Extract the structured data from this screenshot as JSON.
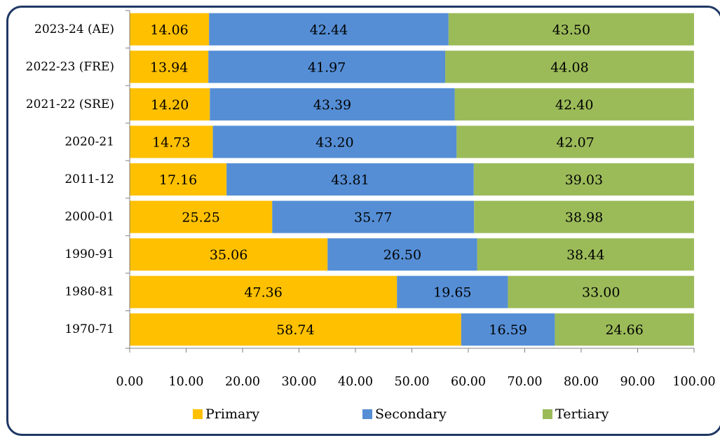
{
  "chart_data": {
    "type": "bar",
    "orientation": "horizontal",
    "stacked": true,
    "categories": [
      "2023-24 (AE)",
      "2022-23 (FRE)",
      "2021-22 (SRE)",
      "2020-21",
      "2011-12",
      "2000-01",
      "1990-91",
      "1980-81",
      "1970-71"
    ],
    "series": [
      {
        "name": "Primary",
        "color": "#ffc000",
        "values": [
          14.06,
          13.94,
          14.2,
          14.73,
          17.16,
          25.25,
          35.06,
          47.36,
          58.74
        ],
        "labels": [
          "14.06",
          "13.94",
          "14.20",
          "14.73",
          "17.16",
          "25.25",
          "35.06",
          "47.36",
          "58.74"
        ]
      },
      {
        "name": "Secondary",
        "color": "#558ed5",
        "values": [
          42.44,
          41.97,
          43.39,
          43.2,
          43.81,
          35.77,
          26.5,
          19.65,
          16.59
        ],
        "labels": [
          "42.44",
          "41.97",
          "43.39",
          "43.20",
          "43.81",
          "35.77",
          "26.50",
          "19.65",
          "16.59"
        ]
      },
      {
        "name": "Tertiary",
        "color": "#9bbb59",
        "values": [
          43.5,
          44.08,
          42.4,
          42.07,
          39.03,
          38.98,
          38.44,
          33.0,
          24.66
        ],
        "labels": [
          "43.50",
          "44.08",
          "42.40",
          "42.07",
          "39.03",
          "38.98",
          "38.44",
          "33.00",
          "24.66"
        ]
      }
    ],
    "xlim": [
      0,
      100
    ],
    "xticks": [
      "0.00",
      "10.00",
      "20.00",
      "30.00",
      "40.00",
      "50.00",
      "60.00",
      "70.00",
      "80.00",
      "90.00",
      "100.00"
    ],
    "grid": false,
    "legend_position": "bottom"
  }
}
